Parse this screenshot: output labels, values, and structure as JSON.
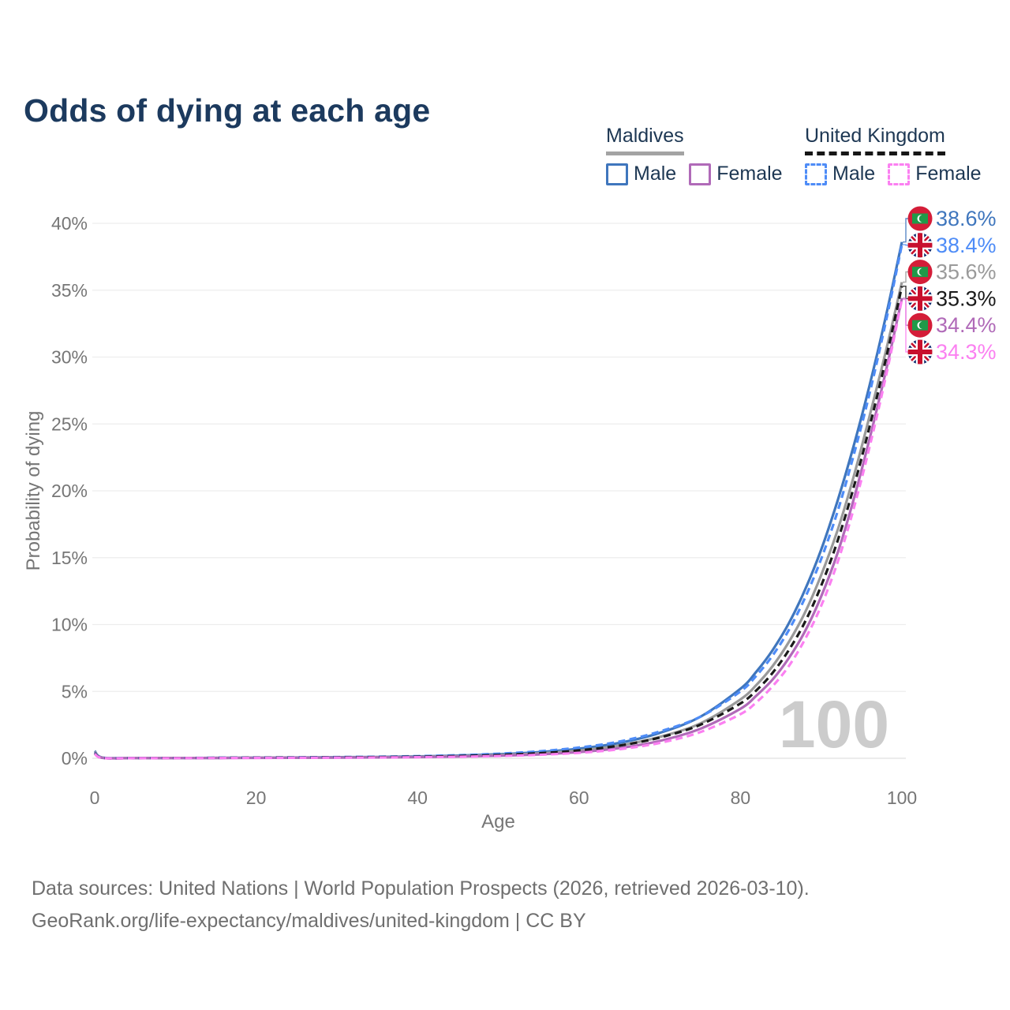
{
  "title": "Odds of dying at each age",
  "legend": {
    "maldives": {
      "title": "Maldives",
      "male": "Male",
      "female": "Female",
      "male_color": "#3f76bd",
      "female_color": "#b06ab8",
      "rule_color": "#a3a3a3"
    },
    "uk": {
      "title": "United Kingdom",
      "male": "Male",
      "female": "Female",
      "male_color": "#4e8cf7",
      "female_color": "#fb80f1",
      "rule_color": "#161616"
    }
  },
  "chart_data": {
    "type": "line",
    "title": "Odds of dying at each age",
    "xlabel": "Age",
    "ylabel": "Probability of dying",
    "xlim": [
      0,
      100
    ],
    "ylim": [
      0,
      40
    ],
    "x_ticks": [
      0,
      20,
      40,
      60,
      80,
      100
    ],
    "y_tick_values": [
      0,
      5,
      10,
      15,
      20,
      25,
      30,
      35,
      40
    ],
    "y_tick_labels": [
      "0%",
      "5%",
      "10%",
      "15%",
      "20%",
      "25%",
      "30%",
      "35%",
      "40%"
    ],
    "grid": "horizontal",
    "legend_position": "top-right",
    "watermark": "100",
    "series": [
      {
        "name": "Maldives Male",
        "country": "Maldives",
        "sex": "male",
        "color": "#3f76bd",
        "dash": false,
        "flag": "mv",
        "end_label": "38.6%",
        "points": [
          [
            0,
            0.55
          ],
          [
            1,
            0.05
          ],
          [
            5,
            0.02
          ],
          [
            10,
            0.02
          ],
          [
            15,
            0.03
          ],
          [
            20,
            0.05
          ],
          [
            25,
            0.06
          ],
          [
            30,
            0.08
          ],
          [
            35,
            0.1
          ],
          [
            40,
            0.14
          ],
          [
            45,
            0.2
          ],
          [
            50,
            0.3
          ],
          [
            55,
            0.46
          ],
          [
            60,
            0.72
          ],
          [
            65,
            1.15
          ],
          [
            70,
            1.9
          ],
          [
            75,
            3.1
          ],
          [
            80,
            5.2
          ],
          [
            82,
            6.5
          ],
          [
            84,
            8.1
          ],
          [
            86,
            10.1
          ],
          [
            88,
            12.6
          ],
          [
            90,
            15.6
          ],
          [
            92,
            19.2
          ],
          [
            94,
            23.3
          ],
          [
            96,
            27.9
          ],
          [
            98,
            33.0
          ],
          [
            100,
            38.6
          ]
        ]
      },
      {
        "name": "Maldives Total",
        "country": "Maldives",
        "sex": "total",
        "color": "#9a9a9a",
        "dash": false,
        "flag": "mv",
        "end_label": "35.6%",
        "points": [
          [
            0,
            0.5
          ],
          [
            1,
            0.04
          ],
          [
            5,
            0.018
          ],
          [
            10,
            0.02
          ],
          [
            15,
            0.03
          ],
          [
            20,
            0.04
          ],
          [
            25,
            0.05
          ],
          [
            30,
            0.06
          ],
          [
            35,
            0.08
          ],
          [
            40,
            0.11
          ],
          [
            45,
            0.16
          ],
          [
            50,
            0.24
          ],
          [
            55,
            0.37
          ],
          [
            60,
            0.58
          ],
          [
            65,
            0.95
          ],
          [
            70,
            1.6
          ],
          [
            75,
            2.6
          ],
          [
            80,
            4.4
          ],
          [
            82,
            5.5
          ],
          [
            84,
            6.9
          ],
          [
            86,
            8.7
          ],
          [
            88,
            10.9
          ],
          [
            90,
            13.7
          ],
          [
            92,
            17.0
          ],
          [
            94,
            21.0
          ],
          [
            96,
            25.6
          ],
          [
            98,
            30.4
          ],
          [
            100,
            35.6
          ]
        ]
      },
      {
        "name": "Maldives Female",
        "country": "Maldives",
        "sex": "female",
        "color": "#b06ab8",
        "dash": false,
        "flag": "mv",
        "end_label": "34.4%",
        "points": [
          [
            0,
            0.45
          ],
          [
            1,
            0.03
          ],
          [
            5,
            0.015
          ],
          [
            10,
            0.018
          ],
          [
            15,
            0.025
          ],
          [
            20,
            0.03
          ],
          [
            25,
            0.04
          ],
          [
            30,
            0.05
          ],
          [
            35,
            0.065
          ],
          [
            40,
            0.09
          ],
          [
            45,
            0.13
          ],
          [
            50,
            0.19
          ],
          [
            55,
            0.29
          ],
          [
            60,
            0.46
          ],
          [
            65,
            0.76
          ],
          [
            70,
            1.3
          ],
          [
            75,
            2.2
          ],
          [
            80,
            3.7
          ],
          [
            82,
            4.7
          ],
          [
            84,
            5.9
          ],
          [
            86,
            7.5
          ],
          [
            88,
            9.5
          ],
          [
            90,
            12.1
          ],
          [
            92,
            15.3
          ],
          [
            94,
            19.3
          ],
          [
            96,
            23.9
          ],
          [
            98,
            28.9
          ],
          [
            100,
            34.4
          ]
        ]
      },
      {
        "name": "United Kingdom Male",
        "country": "United Kingdom",
        "sex": "male",
        "color": "#4e8cf7",
        "dash": true,
        "flag": "uk",
        "end_label": "38.4%",
        "points": [
          [
            0,
            0.42
          ],
          [
            1,
            0.03
          ],
          [
            5,
            0.015
          ],
          [
            10,
            0.02
          ],
          [
            15,
            0.04
          ],
          [
            20,
            0.06
          ],
          [
            25,
            0.07
          ],
          [
            30,
            0.09
          ],
          [
            35,
            0.12
          ],
          [
            40,
            0.16
          ],
          [
            45,
            0.23
          ],
          [
            50,
            0.34
          ],
          [
            55,
            0.52
          ],
          [
            60,
            0.8
          ],
          [
            65,
            1.25
          ],
          [
            70,
            2.0
          ],
          [
            75,
            3.1
          ],
          [
            80,
            5.0
          ],
          [
            82,
            6.2
          ],
          [
            84,
            7.7
          ],
          [
            86,
            9.6
          ],
          [
            88,
            12.0
          ],
          [
            90,
            14.9
          ],
          [
            92,
            18.4
          ],
          [
            94,
            22.6
          ],
          [
            96,
            27.3
          ],
          [
            98,
            32.6
          ],
          [
            100,
            38.4
          ]
        ]
      },
      {
        "name": "United Kingdom Total",
        "country": "United Kingdom",
        "sex": "total",
        "color": "#1a1a1a",
        "dash": true,
        "flag": "uk",
        "end_label": "35.3%",
        "points": [
          [
            0,
            0.38
          ],
          [
            1,
            0.025
          ],
          [
            5,
            0.012
          ],
          [
            10,
            0.015
          ],
          [
            15,
            0.03
          ],
          [
            20,
            0.045
          ],
          [
            25,
            0.055
          ],
          [
            30,
            0.07
          ],
          [
            35,
            0.09
          ],
          [
            40,
            0.12
          ],
          [
            45,
            0.17
          ],
          [
            50,
            0.25
          ],
          [
            55,
            0.38
          ],
          [
            60,
            0.59
          ],
          [
            65,
            0.95
          ],
          [
            70,
            1.55
          ],
          [
            75,
            2.5
          ],
          [
            80,
            4.1
          ],
          [
            82,
            5.1
          ],
          [
            84,
            6.4
          ],
          [
            86,
            8.1
          ],
          [
            88,
            10.2
          ],
          [
            90,
            12.9
          ],
          [
            92,
            16.2
          ],
          [
            94,
            20.2
          ],
          [
            96,
            24.8
          ],
          [
            98,
            29.8
          ],
          [
            100,
            35.3
          ]
        ]
      },
      {
        "name": "United Kingdom Female",
        "country": "United Kingdom",
        "sex": "female",
        "color": "#fb80f1",
        "dash": true,
        "flag": "uk",
        "end_label": "34.3%",
        "points": [
          [
            0,
            0.33
          ],
          [
            1,
            0.02
          ],
          [
            5,
            0.01
          ],
          [
            10,
            0.013
          ],
          [
            15,
            0.02
          ],
          [
            20,
            0.028
          ],
          [
            25,
            0.035
          ],
          [
            30,
            0.045
          ],
          [
            35,
            0.06
          ],
          [
            40,
            0.08
          ],
          [
            45,
            0.115
          ],
          [
            50,
            0.17
          ],
          [
            55,
            0.26
          ],
          [
            60,
            0.41
          ],
          [
            65,
            0.68
          ],
          [
            70,
            1.15
          ],
          [
            75,
            1.95
          ],
          [
            80,
            3.3
          ],
          [
            82,
            4.2
          ],
          [
            84,
            5.4
          ],
          [
            86,
            6.9
          ],
          [
            88,
            8.9
          ],
          [
            90,
            11.4
          ],
          [
            92,
            14.6
          ],
          [
            94,
            18.6
          ],
          [
            96,
            23.3
          ],
          [
            98,
            28.5
          ],
          [
            100,
            34.3
          ]
        ]
      }
    ]
  },
  "footer": {
    "line1": "Data sources: United Nations | World Population Prospects (2026, retrieved 2026-03-10).",
    "line2": "GeoRank.org/life-expectancy/maldives/united-kingdom | CC BY"
  }
}
